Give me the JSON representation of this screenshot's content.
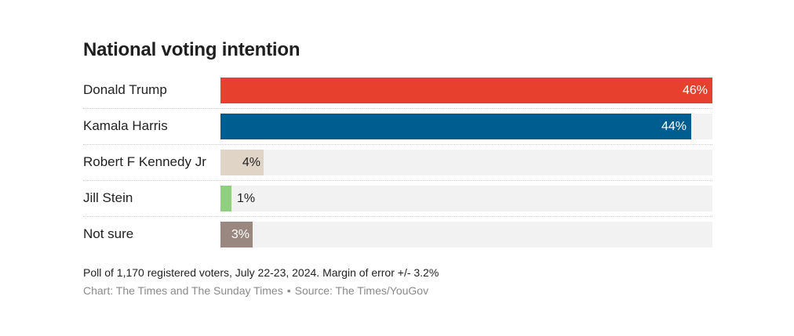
{
  "chart_data": {
    "type": "bar",
    "orientation": "horizontal",
    "title": "National voting intention",
    "categories": [
      "Donald Trump",
      "Kamala Harris",
      "Robert F Kennedy Jr",
      "Jill Stein",
      "Not sure"
    ],
    "values": [
      46,
      44,
      4,
      1,
      3
    ],
    "value_labels": [
      "46%",
      "44%",
      "4%",
      "1%",
      "3%"
    ],
    "colors": [
      "#e8402f",
      "#005d8f",
      "#e0d4c6",
      "#8fcf7f",
      "#9a8780"
    ],
    "track_color": "#f2f2f2",
    "xlim": [
      0,
      46
    ],
    "grid": false,
    "legend": "none"
  },
  "footer": {
    "note": "Poll of 1,170 registered voters, July 22-23, 2024. Margin of error +/- 3.2%",
    "credit": "Chart: The Times and The Sunday Times",
    "separator": "•",
    "source": "Source: The Times/YouGov"
  }
}
